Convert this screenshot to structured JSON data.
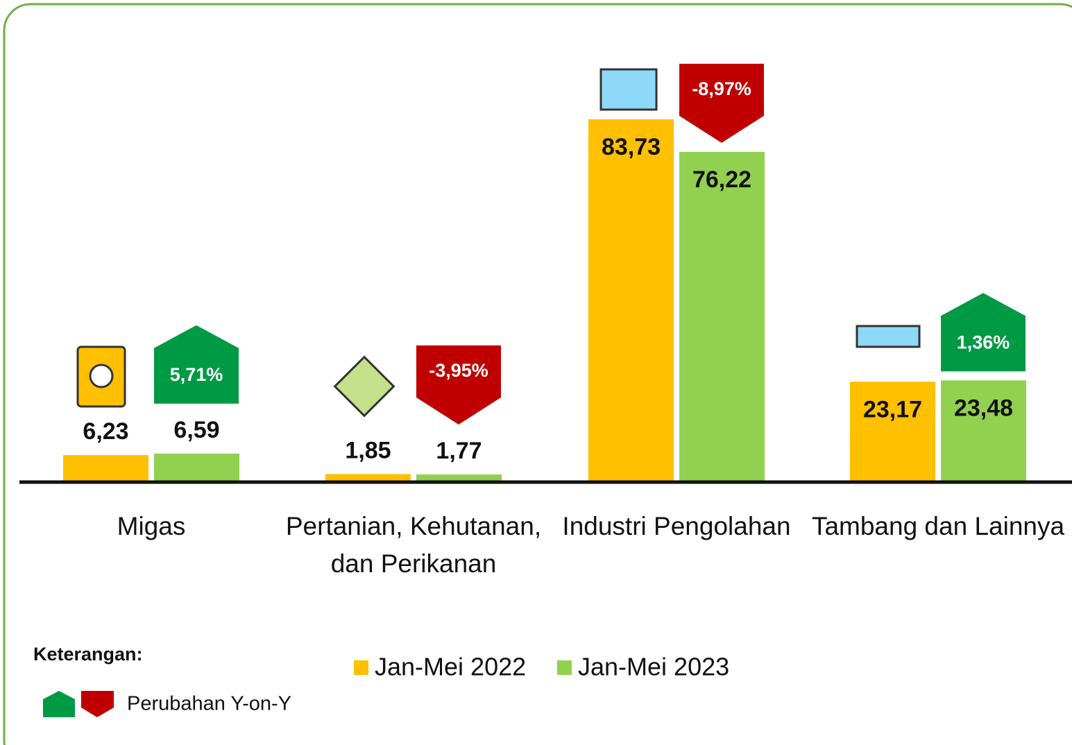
{
  "chart_data": {
    "type": "bar",
    "categories": [
      "Migas",
      "Pertanian, Kehutanan, dan Perikanan",
      "Industri Pengolahan",
      "Tambang dan Lainnya"
    ],
    "series": [
      {
        "name": "Jan-Mei 2022",
        "color": "#FFC000",
        "values": [
          6.23,
          1.85,
          83.73,
          23.17
        ],
        "value_labels": [
          "6,23",
          "1,85",
          "83,73",
          "23,17"
        ]
      },
      {
        "name": "Jan-Mei 2023",
        "color": "#92D050",
        "values": [
          6.59,
          1.77,
          76.22,
          23.48
        ],
        "value_labels": [
          "6,59",
          "1,77",
          "76,22",
          "23,48"
        ]
      }
    ],
    "change": {
      "values": [
        5.71,
        -3.95,
        -8.97,
        1.36
      ],
      "value_labels": [
        "5,71%",
        "-3,95%",
        "-8,97%",
        "1,36%"
      ],
      "up_color": "#009A44",
      "down_color": "#C00000"
    },
    "legend_title": "Keterangan:",
    "change_legend": "Perubahan Y-on-Y"
  }
}
